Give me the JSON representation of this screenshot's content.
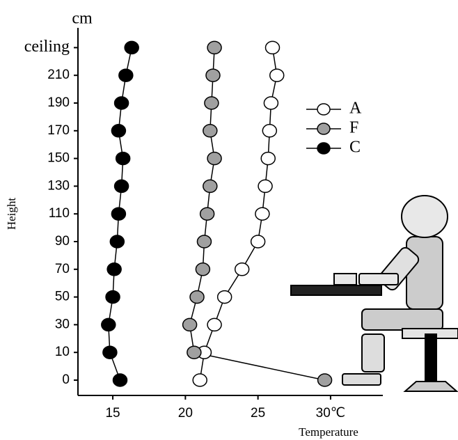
{
  "chart_data": {
    "type": "line",
    "y_unit": "cm",
    "ylabel": "Height",
    "xlabel": "Temperature",
    "categories": [
      "0",
      "10",
      "30",
      "50",
      "70",
      "90",
      "110",
      "130",
      "150",
      "170",
      "190",
      "210",
      "ceiling"
    ],
    "series": [
      {
        "name": "A",
        "color": "#ffffff",
        "values": [
          21.0,
          21.3,
          22.0,
          22.7,
          23.9,
          25.0,
          25.3,
          25.5,
          25.7,
          25.8,
          25.9,
          26.3,
          26.0
        ]
      },
      {
        "name": "F",
        "color": "#a0a0a0",
        "values": [
          29.6,
          20.6,
          20.3,
          20.8,
          21.2,
          21.3,
          21.5,
          21.7,
          22.0,
          21.7,
          21.8,
          21.9,
          22.0
        ]
      },
      {
        "name": "C",
        "color": "#000000",
        "values": [
          15.5,
          14.8,
          14.7,
          15.0,
          15.1,
          15.3,
          15.4,
          15.6,
          15.7,
          15.4,
          15.6,
          15.9,
          16.3
        ]
      }
    ],
    "xlim": [
      12.6,
      33.6
    ],
    "xticks": [
      15,
      20,
      25,
      {
        "value": 30,
        "label": "30℃"
      }
    ],
    "legend": "upper right"
  }
}
